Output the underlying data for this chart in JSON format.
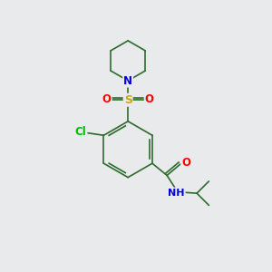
{
  "background_color": "#e8eaeb",
  "bond_color": "#2d6b2d",
  "atom_colors": {
    "N": "#0000dd",
    "O": "#ff0000",
    "S": "#ccaa00",
    "Cl": "#00bb00",
    "C": "#2d6b2d",
    "H": "#888888"
  },
  "figsize": [
    3.0,
    3.0
  ],
  "dpi": 100,
  "lw": 1.2,
  "fs": 8.5
}
